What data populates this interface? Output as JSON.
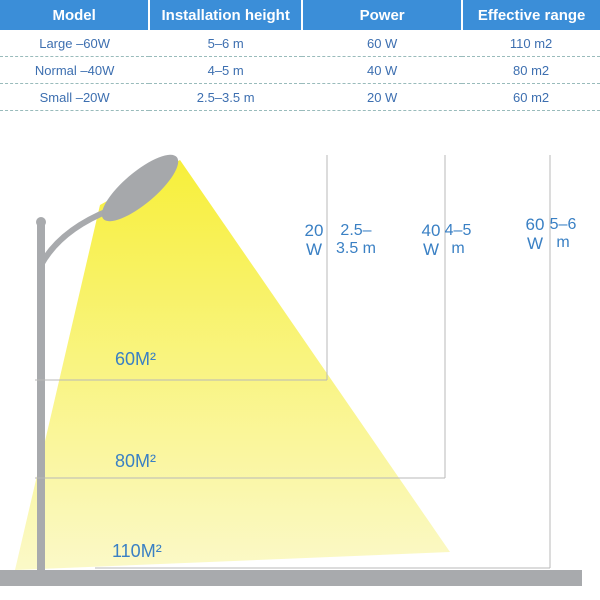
{
  "table": {
    "header": [
      "Model",
      "Installation height",
      "Power",
      "Effective range"
    ],
    "rows": [
      [
        "Large –60W",
        "5–6 m",
        "60 W",
        "110 m2"
      ],
      [
        "Normal –40W",
        "4–5 m",
        "40 W",
        "80  m2"
      ],
      [
        "Small –20W",
        "2.5–3.5 m",
        "20 W",
        "60  m2"
      ]
    ]
  },
  "diagram": {
    "markers": [
      {
        "power": "20 W",
        "height": "2.5–3.5 m"
      },
      {
        "power": "40 W",
        "height": "4–5 m"
      },
      {
        "power": "60 W",
        "height": "5–6 m"
      }
    ],
    "areas": [
      "60M²",
      "80M²",
      "110M²"
    ]
  }
}
